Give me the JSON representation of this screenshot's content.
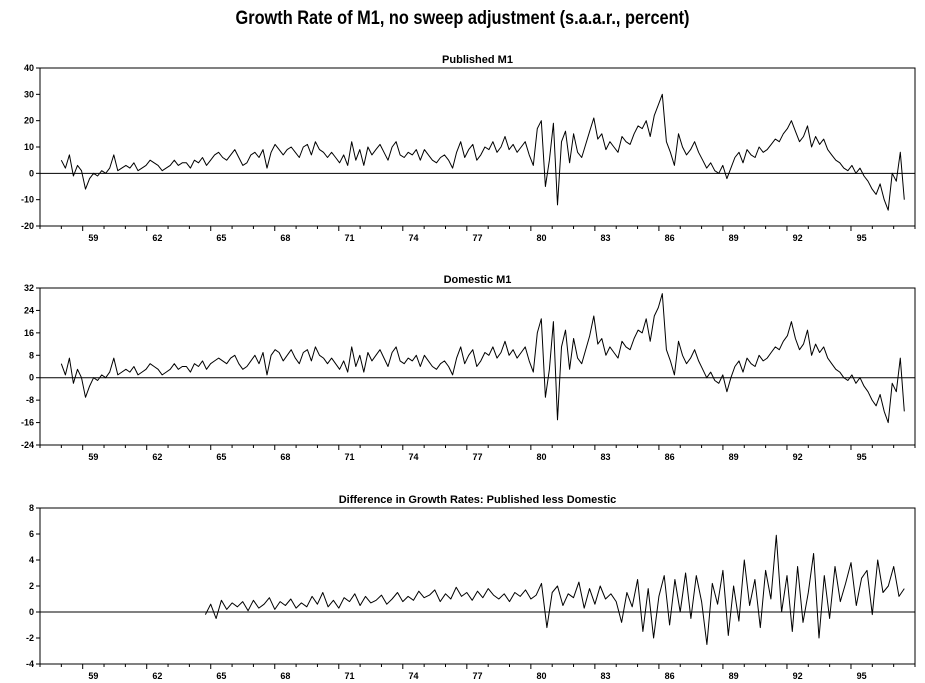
{
  "title": "Growth Rate of M1, no sweep adjustment (s.a.a.r., percent)",
  "chart_data": [
    {
      "type": "line",
      "title": "Published M1",
      "ylim": [
        -20,
        40
      ],
      "yticks": [
        40,
        30,
        20,
        10,
        0,
        -10,
        -20
      ],
      "xlim": [
        1957.0,
        1998.0
      ],
      "xtick_labels": [
        "59",
        "62",
        "65",
        "68",
        "71",
        "74",
        "77",
        "80",
        "83",
        "86",
        "89",
        "92",
        "95"
      ],
      "series": [
        {
          "x_start": 1958.0,
          "x_end": 1997.5,
          "values": [
            5,
            2,
            7,
            -1,
            3,
            1,
            -6,
            -2,
            0,
            -1,
            1,
            0,
            2,
            7,
            1,
            2,
            3,
            2,
            4,
            1,
            2,
            3,
            5,
            4,
            3,
            1,
            2,
            3,
            5,
            3,
            4,
            4,
            2,
            5,
            4,
            6,
            3,
            5,
            7,
            8,
            6,
            5,
            7,
            9,
            6,
            3,
            4,
            7,
            8,
            6,
            9,
            2,
            8,
            11,
            9,
            7,
            9,
            10,
            8,
            6,
            10,
            11,
            7,
            12,
            9,
            8,
            6,
            8,
            6,
            4,
            7,
            3,
            12,
            5,
            9,
            3,
            10,
            7,
            9,
            11,
            8,
            5,
            10,
            12,
            7,
            6,
            8,
            7,
            9,
            5,
            9,
            7,
            5,
            4,
            6,
            7,
            5,
            2,
            8,
            12,
            6,
            9,
            11,
            5,
            7,
            10,
            9,
            12,
            8,
            10,
            14,
            9,
            11,
            8,
            10,
            12,
            7,
            3,
            17,
            20,
            -5,
            5,
            19,
            -12,
            12,
            16,
            4,
            15,
            8,
            6,
            11,
            16,
            21,
            13,
            15,
            9,
            12,
            10,
            8,
            14,
            12,
            11,
            15,
            18,
            17,
            20,
            14,
            22,
            26,
            30,
            12,
            8,
            3,
            15,
            10,
            7,
            9,
            12,
            8,
            5,
            2,
            4,
            1,
            0,
            3,
            -2,
            2,
            6,
            8,
            4,
            9,
            7,
            6,
            10,
            8,
            9,
            11,
            13,
            12,
            15,
            17,
            20,
            16,
            12,
            14,
            18,
            10,
            14,
            11,
            13,
            9,
            7,
            5,
            4,
            2,
            1,
            3,
            0,
            2,
            -1,
            -3,
            -6,
            -8,
            -4,
            -10,
            -14,
            0,
            -3,
            8,
            -10
          ]
        }
      ]
    },
    {
      "type": "line",
      "title": "Domestic M1",
      "ylim": [
        -24,
        32
      ],
      "yticks": [
        32,
        24,
        16,
        8,
        0,
        -8,
        -16,
        -24
      ],
      "xlim": [
        1957.0,
        1998.0
      ],
      "xtick_labels": [
        "59",
        "62",
        "65",
        "68",
        "71",
        "74",
        "77",
        "80",
        "83",
        "86",
        "89",
        "92",
        "95"
      ],
      "series": [
        {
          "x_start": 1958.0,
          "x_end": 1997.5,
          "values": [
            5,
            1,
            7,
            -2,
            3,
            0,
            -7,
            -3,
            0,
            -1,
            1,
            0,
            2,
            7,
            1,
            2,
            3,
            2,
            4,
            1,
            2,
            3,
            5,
            4,
            3,
            1,
            2,
            3,
            5,
            3,
            4,
            4,
            2,
            5,
            4,
            6,
            3,
            5,
            6,
            7,
            6,
            5,
            7,
            8,
            5,
            3,
            4,
            6,
            8,
            5,
            9,
            1,
            8,
            10,
            9,
            6,
            8,
            10,
            7,
            5,
            9,
            10,
            6,
            11,
            8,
            7,
            5,
            7,
            5,
            3,
            6,
            2,
            11,
            4,
            8,
            2,
            9,
            6,
            8,
            10,
            7,
            4,
            9,
            11,
            6,
            5,
            7,
            6,
            8,
            4,
            8,
            6,
            4,
            3,
            5,
            6,
            4,
            1,
            7,
            11,
            5,
            8,
            10,
            4,
            6,
            9,
            8,
            11,
            7,
            9,
            13,
            8,
            10,
            7,
            9,
            11,
            6,
            2,
            16,
            21,
            -7,
            3,
            20,
            -15,
            11,
            17,
            3,
            14,
            7,
            5,
            10,
            15,
            22,
            12,
            14,
            8,
            11,
            9,
            7,
            13,
            11,
            10,
            14,
            17,
            16,
            21,
            13,
            22,
            25,
            30,
            10,
            6,
            1,
            13,
            8,
            5,
            7,
            10,
            6,
            3,
            0,
            2,
            -1,
            -2,
            1,
            -5,
            0,
            4,
            6,
            2,
            7,
            5,
            4,
            8,
            6,
            7,
            9,
            11,
            10,
            13,
            15,
            20,
            14,
            10,
            12,
            17,
            8,
            12,
            9,
            11,
            7,
            5,
            3,
            2,
            0,
            -1,
            1,
            -2,
            0,
            -3,
            -5,
            -8,
            -10,
            -6,
            -12,
            -16,
            -2,
            -5,
            7,
            -12
          ]
        }
      ]
    },
    {
      "type": "line",
      "title": "Difference in Growth Rates: Published less Domestic",
      "ylim": [
        -4,
        8
      ],
      "yticks": [
        8,
        6,
        4,
        2,
        0,
        -2,
        -4
      ],
      "xlim": [
        1957.0,
        1998.0
      ],
      "xtick_labels": [
        "59",
        "62",
        "65",
        "68",
        "71",
        "74",
        "77",
        "80",
        "83",
        "86",
        "89",
        "92",
        "95"
      ],
      "series": [
        {
          "x_start": 1964.75,
          "x_end": 1997.5,
          "values": [
            -0.2,
            0.6,
            -0.5,
            0.9,
            0.2,
            0.7,
            0.4,
            0.8,
            0.1,
            0.9,
            0.3,
            0.6,
            1.1,
            0.2,
            0.8,
            0.5,
            1.0,
            0.3,
            0.7,
            0.4,
            1.2,
            0.6,
            1.5,
            0.4,
            0.9,
            0.3,
            1.1,
            0.8,
            1.4,
            0.5,
            1.2,
            0.7,
            0.9,
            1.3,
            0.6,
            1.0,
            1.5,
            0.8,
            1.2,
            0.9,
            1.6,
            1.1,
            1.3,
            1.7,
            0.8,
            1.4,
            1.0,
            1.9,
            1.2,
            1.5,
            0.9,
            1.6,
            1.1,
            1.8,
            1.3,
            1.0,
            1.4,
            0.8,
            1.5,
            1.2,
            1.7,
            1.0,
            1.3,
            2.2,
            -1.2,
            1.5,
            2.0,
            0.5,
            1.4,
            1.1,
            2.3,
            0.3,
            1.8,
            0.6,
            2.0,
            1.0,
            1.4,
            0.8,
            -0.8,
            1.5,
            0.4,
            2.5,
            -1.5,
            1.8,
            -2.0,
            1.2,
            2.8,
            -1.0,
            2.5,
            0.0,
            3.0,
            -0.5,
            2.8,
            0.8,
            -2.5,
            2.2,
            0.6,
            3.2,
            -1.8,
            2.0,
            -0.7,
            4.0,
            0.5,
            2.5,
            -1.2,
            3.2,
            1.0,
            5.9,
            0.0,
            2.8,
            -1.5,
            3.5,
            -0.8,
            1.5,
            4.5,
            -2.0,
            2.8,
            -0.5,
            3.5,
            0.8,
            2.2,
            3.8,
            0.5,
            2.6,
            3.2,
            -0.2,
            4.0,
            1.5,
            2.0,
            3.5,
            1.2,
            1.8
          ]
        }
      ]
    }
  ]
}
